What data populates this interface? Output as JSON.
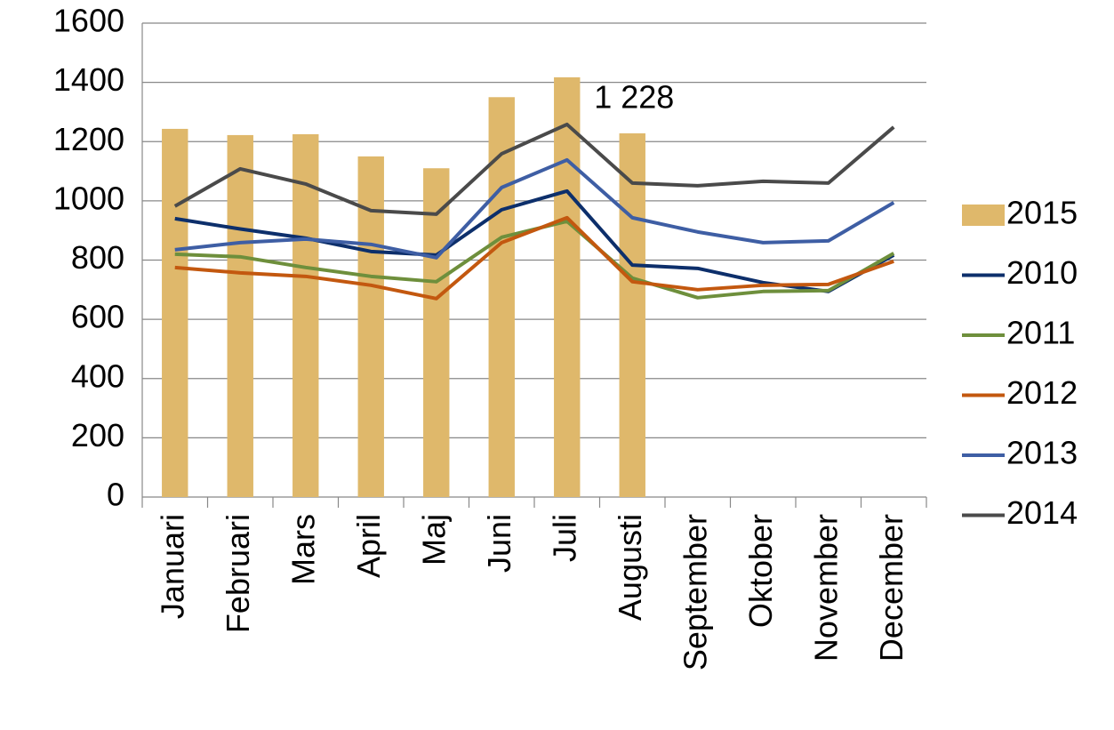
{
  "chart_data": {
    "type": "combo",
    "categories": [
      "Januari",
      "Februari",
      "Mars",
      "April",
      "Maj",
      "Juni",
      "Juli",
      "Augusti",
      "September",
      "Oktober",
      "November",
      "December"
    ],
    "series": [
      {
        "name": "2015",
        "type": "bar",
        "color": "#dfb86b",
        "values": [
          1243,
          1222,
          1225,
          1150,
          1110,
          1350,
          1417,
          1228,
          null,
          null,
          null,
          null
        ],
        "value_labels": [
          null,
          null,
          null,
          null,
          null,
          null,
          null,
          "1 228",
          null,
          null,
          null,
          null
        ]
      },
      {
        "name": "2010",
        "type": "line",
        "color": "#0d2f6b",
        "values": [
          940,
          905,
          874,
          829,
          817,
          970,
          1033,
          783,
          772,
          724,
          694,
          817
        ]
      },
      {
        "name": "2011",
        "type": "line",
        "color": "#6e8f3c",
        "values": [
          820,
          811,
          775,
          745,
          727,
          877,
          931,
          739,
          673,
          694,
          697,
          823
        ]
      },
      {
        "name": "2012",
        "type": "line",
        "color": "#c3580f",
        "values": [
          775,
          757,
          745,
          715,
          670,
          859,
          943,
          727,
          700,
          715,
          718,
          796
        ]
      },
      {
        "name": "2013",
        "type": "line",
        "color": "#3e5ea4",
        "values": [
          835,
          859,
          871,
          853,
          808,
          1045,
          1138,
          943,
          895,
          859,
          865,
          994
        ]
      },
      {
        "name": "2014",
        "type": "line",
        "color": "#4a4a4a",
        "values": [
          982,
          1108,
          1057,
          967,
          955,
          1159,
          1258,
          1060,
          1051,
          1066,
          1060,
          1249
        ]
      }
    ],
    "ylim": [
      0,
      1600
    ],
    "yticks": [
      0,
      200,
      400,
      600,
      800,
      1000,
      1200,
      1400,
      1600
    ],
    "grid": true,
    "legend": "right"
  }
}
